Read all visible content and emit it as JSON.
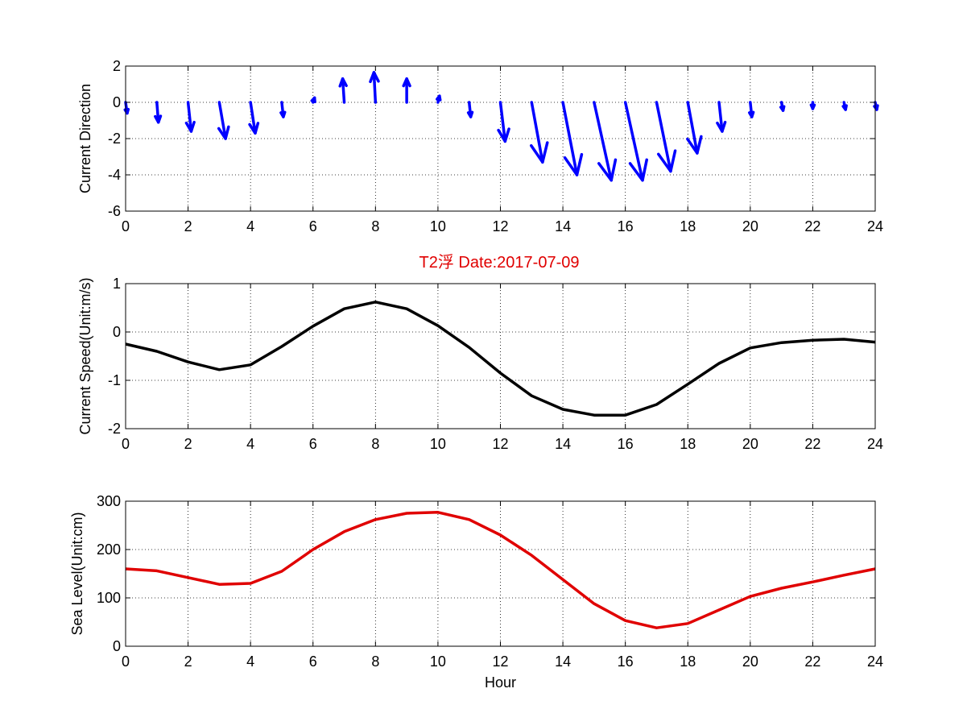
{
  "figure_title": "T2浮   Date:2017-07-09",
  "colors": {
    "arrows": "#0000ff",
    "speed": "#000000",
    "sea_level": "#e00000",
    "title": "#e00000"
  },
  "chart_data": [
    {
      "type": "quiver",
      "ylabel": "Current Direction",
      "xlabel": "",
      "xlim": [
        0,
        24
      ],
      "ylim": [
        -6,
        2
      ],
      "xticks": [
        "0",
        "2",
        "4",
        "6",
        "8",
        "10",
        "12",
        "14",
        "16",
        "18",
        "20",
        "22",
        "24"
      ],
      "yticks": [
        "-6",
        "-4",
        "-2",
        "0",
        "2"
      ],
      "grid": true,
      "x": [
        0,
        1,
        2,
        3,
        4,
        5,
        6,
        7,
        8,
        9,
        10,
        11,
        12,
        13,
        14,
        15,
        16,
        17,
        18,
        19,
        20,
        21,
        22,
        23,
        24
      ],
      "u": [
        0.05,
        0.05,
        0.1,
        0.2,
        0.15,
        0.05,
        0.05,
        -0.05,
        -0.05,
        0,
        0.05,
        0.05,
        0.15,
        0.35,
        0.45,
        0.55,
        0.55,
        0.45,
        0.3,
        0.1,
        0.05,
        0.05,
        0,
        0.05,
        0.05
      ],
      "v": [
        -0.6,
        -1.1,
        -1.6,
        -2.0,
        -1.7,
        -0.8,
        0.25,
        1.3,
        1.65,
        1.3,
        0.35,
        -0.8,
        -2.15,
        -3.3,
        -4.0,
        -4.3,
        -4.3,
        -3.8,
        -2.8,
        -1.6,
        -0.8,
        -0.45,
        -0.35,
        -0.4,
        -0.4
      ],
      "color": "#0000ff"
    },
    {
      "type": "line",
      "ylabel": "Current Speed(Unit:m/s)",
      "xlabel": "",
      "xlim": [
        0,
        24
      ],
      "ylim": [
        -2,
        1
      ],
      "xticks": [
        "0",
        "2",
        "4",
        "6",
        "8",
        "10",
        "12",
        "14",
        "16",
        "18",
        "20",
        "22",
        "24"
      ],
      "yticks": [
        "-2",
        "-1",
        "0",
        "1"
      ],
      "grid": true,
      "x": [
        0,
        1,
        2,
        3,
        4,
        5,
        6,
        7,
        8,
        9,
        10,
        11,
        12,
        13,
        14,
        15,
        16,
        17,
        18,
        19,
        20,
        21,
        22,
        23,
        24
      ],
      "series": [
        {
          "values": [
            -0.25,
            -0.4,
            -0.62,
            -0.78,
            -0.68,
            -0.3,
            0.12,
            0.48,
            0.62,
            0.48,
            0.13,
            -0.32,
            -0.85,
            -1.32,
            -1.6,
            -1.72,
            -1.72,
            -1.5,
            -1.08,
            -0.65,
            -0.33,
            -0.22,
            -0.17,
            -0.15,
            -0.21
          ],
          "color": "#000000"
        }
      ]
    },
    {
      "type": "line",
      "ylabel": "Sea Level(Unit:cm)",
      "xlabel": "Hour",
      "xlim": [
        0,
        24
      ],
      "ylim": [
        0,
        300
      ],
      "xticks": [
        "0",
        "2",
        "4",
        "6",
        "8",
        "10",
        "12",
        "14",
        "16",
        "18",
        "20",
        "22",
        "24"
      ],
      "yticks": [
        "0",
        "100",
        "200",
        "300"
      ],
      "grid": true,
      "x": [
        0,
        1,
        2,
        3,
        4,
        5,
        6,
        7,
        8,
        9,
        10,
        11,
        12,
        13,
        14,
        15,
        16,
        17,
        18,
        19,
        20,
        21,
        22,
        23,
        24
      ],
      "series": [
        {
          "values": [
            160,
            156,
            142,
            128,
            130,
            155,
            200,
            237,
            262,
            275,
            277,
            262,
            230,
            188,
            138,
            88,
            53,
            38,
            47,
            75,
            103,
            120,
            133,
            147,
            160
          ],
          "color": "#e00000"
        }
      ]
    }
  ]
}
